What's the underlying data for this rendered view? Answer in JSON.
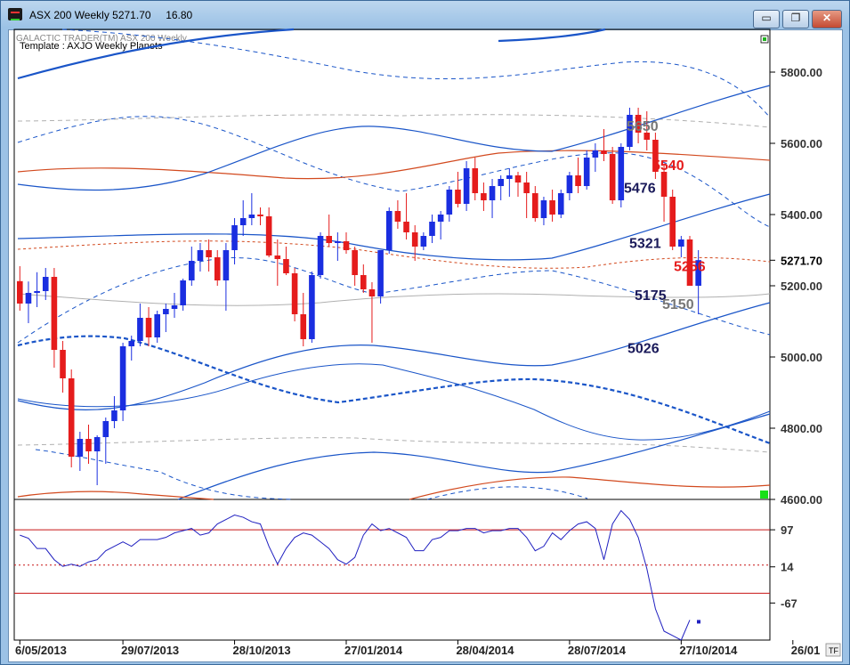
{
  "window": {
    "title": "ASX 200 Weekly 5271.70     16.80",
    "minimize_icon": "minimize-icon",
    "restore_icon": "restore-icon",
    "close_icon": "close-icon"
  },
  "chart_header": {
    "line1": "GALACTIC TRADER(TM)    ASX 200 Weekly",
    "line2": "Template : AXJO Weekly Planets"
  },
  "corner_button": "TF",
  "colors": {
    "up_candle": "#1a2ee0",
    "down_candle": "#e51c1c",
    "planet_blue": "#1a55c8",
    "planet_red": "#d2491e",
    "planet_gray": "#b0b0b0",
    "osc_line": "#2020c0",
    "osc_ref": "#c81414"
  },
  "chart_data": [
    {
      "type": "candlestick",
      "ylim": [
        4600,
        5920
      ],
      "y_ticks": [
        "5800.00",
        "5600.00",
        "5400.00",
        "5200.00",
        "5000.00",
        "4800.00",
        "4600.00"
      ],
      "y_tick_values": [
        5800,
        5600,
        5400,
        5200,
        5000,
        4800,
        4600
      ],
      "last_price_label": "5271.70",
      "last_price": 5271.7,
      "x_labels": [
        "6/05/2013",
        "29/07/2013",
        "28/10/2013",
        "27/01/2014",
        "28/04/2014",
        "28/07/2014",
        "27/10/2014",
        "26/01"
      ],
      "x_label_bars": [
        0,
        12,
        25,
        38,
        51,
        64,
        77,
        90
      ],
      "bars_total": 92,
      "candles": [
        [
          5213,
          5255,
          5130,
          5150
        ],
        [
          5150,
          5212,
          5095,
          5180
        ],
        [
          5180,
          5238,
          5140,
          5185
        ],
        [
          5185,
          5250,
          5160,
          5225
        ],
        [
          5225,
          5250,
          4970,
          5020
        ],
        [
          5020,
          5045,
          4900,
          4940
        ],
        [
          4940,
          4965,
          4690,
          4720
        ],
        [
          4720,
          4790,
          4680,
          4770
        ],
        [
          4770,
          4810,
          4700,
          4735
        ],
        [
          4735,
          4780,
          4640,
          4775
        ],
        [
          4775,
          4830,
          4700,
          4820
        ],
        [
          4820,
          4890,
          4800,
          4850
        ],
        [
          4850,
          5040,
          4820,
          5030
        ],
        [
          5030,
          5060,
          4990,
          5045
        ],
        [
          5045,
          5150,
          5030,
          5110
        ],
        [
          5110,
          5140,
          5030,
          5055
        ],
        [
          5055,
          5130,
          5040,
          5120
        ],
        [
          5120,
          5150,
          5070,
          5135
        ],
        [
          5135,
          5180,
          5110,
          5145
        ],
        [
          5145,
          5220,
          5130,
          5215
        ],
        [
          5215,
          5310,
          5200,
          5270
        ],
        [
          5270,
          5320,
          5240,
          5300
        ],
        [
          5300,
          5330,
          5240,
          5280
        ],
        [
          5280,
          5300,
          5200,
          5215
        ],
        [
          5215,
          5320,
          5130,
          5300
        ],
        [
          5300,
          5390,
          5260,
          5370
        ],
        [
          5370,
          5440,
          5340,
          5390
        ],
        [
          5390,
          5460,
          5370,
          5400
        ],
        [
          5400,
          5420,
          5370,
          5395
        ],
        [
          5395,
          5420,
          5280,
          5285
        ],
        [
          5285,
          5330,
          5200,
          5275
        ],
        [
          5275,
          5310,
          5230,
          5235
        ],
        [
          5235,
          5250,
          5100,
          5120
        ],
        [
          5120,
          5180,
          5030,
          5050
        ],
        [
          5050,
          5240,
          5040,
          5230
        ],
        [
          5230,
          5350,
          5220,
          5340
        ],
        [
          5340,
          5400,
          5310,
          5320
        ],
        [
          5320,
          5350,
          5270,
          5325
        ],
        [
          5325,
          5350,
          5290,
          5300
        ],
        [
          5300,
          5310,
          5200,
          5230
        ],
        [
          5230,
          5260,
          5180,
          5190
        ],
        [
          5190,
          5210,
          5040,
          5170
        ],
        [
          5170,
          5300,
          5150,
          5300
        ],
        [
          5300,
          5420,
          5290,
          5410
        ],
        [
          5410,
          5440,
          5360,
          5380
        ],
        [
          5380,
          5460,
          5330,
          5350
        ],
        [
          5350,
          5370,
          5270,
          5310
        ],
        [
          5310,
          5350,
          5300,
          5340
        ],
        [
          5340,
          5400,
          5320,
          5380
        ],
        [
          5380,
          5410,
          5330,
          5400
        ],
        [
          5400,
          5480,
          5380,
          5470
        ],
        [
          5470,
          5520,
          5420,
          5430
        ],
        [
          5430,
          5550,
          5410,
          5530
        ],
        [
          5530,
          5560,
          5440,
          5460
        ],
        [
          5460,
          5490,
          5410,
          5440
        ],
        [
          5440,
          5500,
          5390,
          5480
        ],
        [
          5480,
          5510,
          5440,
          5500
        ],
        [
          5500,
          5530,
          5450,
          5510
        ],
        [
          5510,
          5520,
          5450,
          5490
        ],
        [
          5490,
          5520,
          5390,
          5460
        ],
        [
          5460,
          5480,
          5380,
          5390
        ],
        [
          5390,
          5450,
          5370,
          5440
        ],
        [
          5440,
          5470,
          5380,
          5400
        ],
        [
          5400,
          5470,
          5390,
          5460
        ],
        [
          5460,
          5520,
          5440,
          5510
        ],
        [
          5510,
          5560,
          5460,
          5480
        ],
        [
          5480,
          5580,
          5470,
          5560
        ],
        [
          5560,
          5600,
          5520,
          5580
        ],
        [
          5580,
          5640,
          5550,
          5570
        ],
        [
          5570,
          5590,
          5430,
          5440
        ],
        [
          5440,
          5600,
          5420,
          5590
        ],
        [
          5590,
          5700,
          5580,
          5680
        ],
        [
          5680,
          5700,
          5600,
          5630
        ],
        [
          5630,
          5690,
          5580,
          5610
        ],
        [
          5610,
          5630,
          5500,
          5520
        ],
        [
          5520,
          5540,
          5380,
          5450
        ],
        [
          5450,
          5470,
          5300,
          5310
        ],
        [
          5310,
          5340,
          5280,
          5330
        ],
        [
          5330,
          5340,
          5200,
          5200
        ],
        [
          5200,
          5300,
          5120,
          5272
        ]
      ]
    },
    {
      "type": "line",
      "y_ticks": [
        "97",
        "14",
        "-67"
      ],
      "y_tick_values": [
        97,
        14,
        -67
      ],
      "ylim": [
        -150,
        165
      ],
      "ref_lines": [
        97,
        18,
        -45
      ],
      "values": [
        85,
        78,
        55,
        55,
        30,
        15,
        20,
        15,
        25,
        30,
        50,
        60,
        70,
        60,
        75,
        75,
        75,
        80,
        90,
        95,
        100,
        85,
        90,
        110,
        120,
        130,
        125,
        115,
        110,
        60,
        20,
        55,
        80,
        90,
        85,
        70,
        55,
        30,
        20,
        35,
        85,
        110,
        95,
        100,
        90,
        80,
        50,
        50,
        75,
        80,
        95,
        95,
        100,
        100,
        90,
        95,
        95,
        100,
        100,
        80,
        50,
        60,
        90,
        75,
        95,
        110,
        115,
        100,
        30,
        110,
        140,
        120,
        80,
        10,
        -80,
        -130,
        -140,
        -150,
        -105
      ]
    }
  ],
  "planet_line_labels": [
    {
      "text": "5650",
      "price": 5650,
      "color": "#777777"
    },
    {
      "text": "5540",
      "price": 5540,
      "color": "#e51c1c"
    },
    {
      "text": "5476",
      "price": 5476,
      "color": "#1a1a5a"
    },
    {
      "text": "5321",
      "price": 5321,
      "color": "#1a1a5a"
    },
    {
      "text": "5256",
      "price": 5256,
      "color": "#e51c1c"
    },
    {
      "text": "5175",
      "price": 5175,
      "color": "#1a1a5a"
    },
    {
      "text": "5150",
      "price": 5150,
      "color": "#777777"
    },
    {
      "text": "5026",
      "price": 5026,
      "color": "#1a1a5a"
    }
  ]
}
